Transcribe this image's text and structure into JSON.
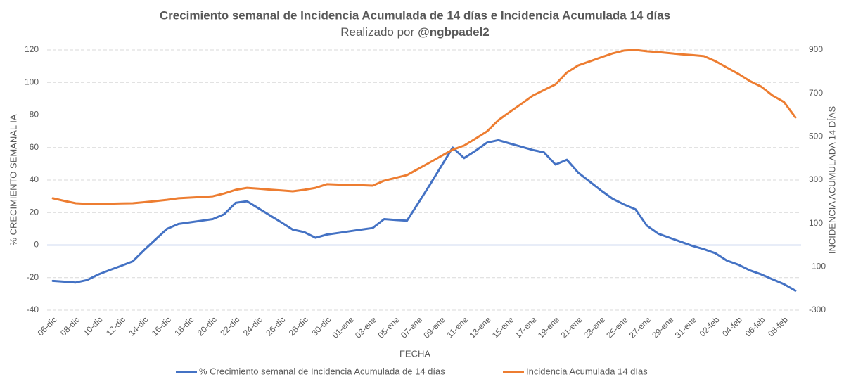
{
  "chart_data": {
    "type": "line",
    "title": "Crecimiento semanal de Incidencia Acumulada de 14 días e Incidencia Acumulada 14 días",
    "subtitle": {
      "text": "Realizado por",
      "handle": "@ngbpadel2"
    },
    "x_label": "FECHA",
    "y_label": "% CRECIMIENTO SEMANAL IA",
    "y2_label": "INCIDENCIA ACUMULADA 14 DÍAS",
    "categories": [
      "06-dic",
      null,
      "08-dic",
      null,
      "10-dic",
      null,
      "12-dic",
      null,
      "14-dic",
      null,
      "16-dic",
      null,
      "18-dic",
      null,
      "20-dic",
      null,
      "22-dic",
      null,
      "24-dic",
      null,
      "26-dic",
      null,
      "28-dic",
      null,
      "30-dic",
      null,
      "01-ene",
      null,
      "03-ene",
      null,
      "05-ene",
      null,
      "07-ene",
      null,
      "09-ene",
      null,
      "11-ene",
      null,
      "13-ene",
      null,
      "15-ene",
      null,
      "17-ene",
      null,
      "19-ene",
      null,
      "21-ene",
      null,
      "23-ene",
      null,
      "25-ene",
      null,
      "27-ene",
      null,
      "29-ene",
      null,
      "31-ene",
      null,
      "02-feb",
      null,
      "04-feb",
      null,
      "06-feb",
      null,
      "08-feb",
      null
    ],
    "series": [
      {
        "name": "% Crecimiento semanal de Incidencia Acumulada de 14 días",
        "color": "#4472c4",
        "axis": "y",
        "values": [
          -22,
          -22.5,
          -23,
          -21.5,
          -18,
          -15.3,
          -12.7,
          -10,
          -3,
          3.5,
          10,
          13,
          14,
          15,
          16,
          19,
          26,
          27,
          22.6,
          18.3,
          14,
          9.5,
          8,
          4.5,
          6.5,
          7.5,
          8.5,
          9.5,
          10.5,
          16,
          15.5,
          15,
          26,
          37,
          48.5,
          60,
          53.5,
          58,
          63,
          64.5,
          62.5,
          60.5,
          58.5,
          57,
          49.5,
          52.5,
          44.5,
          39,
          33.5,
          28.5,
          25,
          22,
          12,
          7,
          4.5,
          2,
          -0.5,
          -2.5,
          -5,
          -9.5,
          -12,
          -15.5,
          -18,
          -21,
          -24,
          -28
        ]
      },
      {
        "name": "Incidencia Acumulada 14 dIas",
        "color": "#ed7d31",
        "axis": "y2",
        "values": [
          216,
          204,
          193,
          190,
          190,
          191,
          192,
          193,
          198,
          203,
          209,
          216,
          219,
          222,
          225,
          238,
          255,
          264,
          260,
          256,
          252,
          248,
          255,
          264,
          281,
          279,
          277,
          276,
          274,
          297,
          310,
          323,
          352,
          381,
          411,
          440,
          459,
          491,
          524,
          576,
          614,
          651,
          689,
          715,
          741,
          796,
          829,
          847,
          866,
          884,
          897,
          900,
          894,
          890,
          885,
          880,
          876,
          871,
          848,
          819,
          790,
          757,
          731,
          690,
          660,
          589
        ]
      }
    ],
    "ylim": [
      -40,
      120
    ],
    "yticks": [
      -40,
      -20,
      0,
      20,
      40,
      60,
      80,
      100,
      120
    ],
    "y2lim": [
      -300,
      900
    ],
    "y2ticks": [
      -300,
      -100,
      100,
      300,
      500,
      700,
      900
    ],
    "grid": true,
    "legend": "bottom"
  }
}
